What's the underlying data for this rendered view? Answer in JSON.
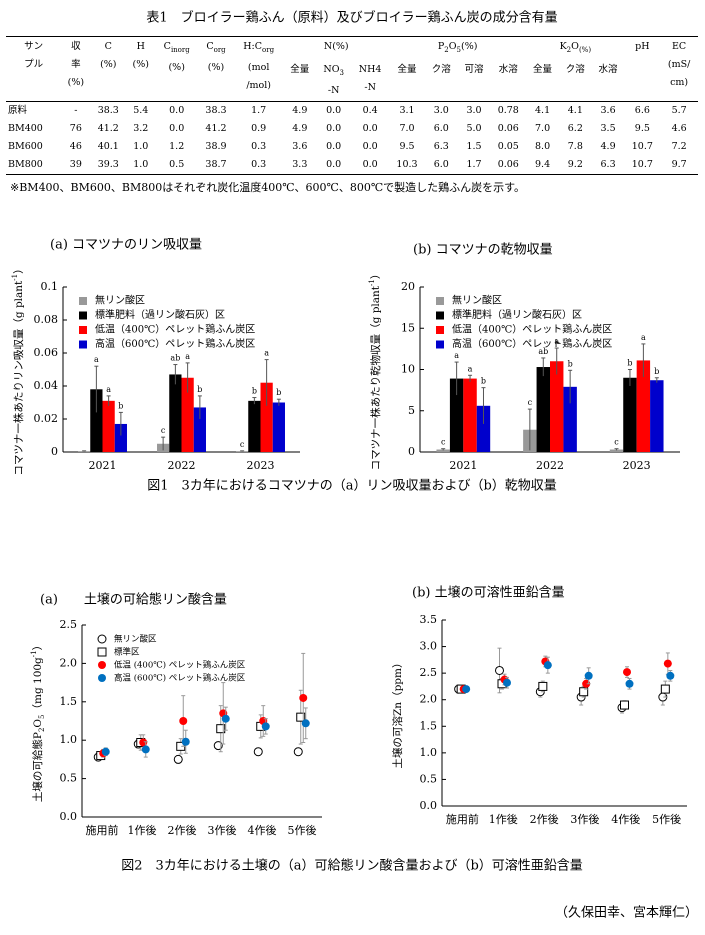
{
  "table": {
    "title": "表1　ブロイラー鶏ふん（原料）及びブロイラー鶏ふん炭の成分含有量",
    "columns": [
      {
        "lines": [
          [
            "サン"
          ],
          [
            "プル"
          ]
        ]
      },
      {
        "lines": [
          [
            "収"
          ],
          [
            "率"
          ],
          [
            "(%)"
          ]
        ]
      },
      {
        "lines": [
          [
            "C"
          ],
          [
            "(%)"
          ]
        ]
      },
      {
        "lines": [
          [
            "H"
          ],
          [
            "(%)"
          ]
        ]
      },
      {
        "lines": [
          [
            "C",
            "inorg"
          ],
          [
            "(%)"
          ]
        ]
      },
      {
        "lines": [
          [
            "C",
            "org"
          ],
          [
            "(%)"
          ]
        ]
      },
      {
        "lines": [
          [
            "H:C",
            "org"
          ],
          [
            "(mol"
          ],
          [
            "/mol)"
          ]
        ]
      },
      {
        "group": [
          "N(%)"
        ],
        "columns": [
          {
            "lines": [
              [
                "全量"
              ]
            ]
          },
          {
            "lines": [
              [
                "NO",
                "3"
              ],
              [
                "-N"
              ]
            ]
          },
          {
            "lines": [
              [
                "NH4"
              ],
              [
                "-N"
              ]
            ]
          }
        ]
      },
      {
        "group": [
          "P",
          "2",
          "O",
          "5",
          "(%)"
        ],
        "columns": [
          {
            "lines": [
              [
                "全量"
              ]
            ]
          },
          {
            "lines": [
              [
                "ク溶"
              ]
            ]
          },
          {
            "lines": [
              [
                "可溶"
              ]
            ]
          },
          {
            "lines": [
              [
                "水溶"
              ]
            ]
          }
        ]
      },
      {
        "group": [
          "K",
          "2",
          "O",
          "(%)"
        ],
        "columns": [
          {
            "lines": [
              [
                "全量"
              ]
            ]
          },
          {
            "lines": [
              [
                "ク溶"
              ]
            ]
          },
          {
            "lines": [
              [
                "水溶"
              ]
            ]
          }
        ]
      },
      {
        "lines": [
          [
            "pH"
          ]
        ]
      },
      {
        "lines": [
          [
            "EC"
          ],
          [
            "(mS/"
          ],
          [
            "cm)"
          ]
        ]
      }
    ],
    "rows": [
      [
        "原料",
        "-",
        "38.3",
        "5.4",
        "0.0",
        "38.3",
        "1.7",
        "4.9",
        "0.0",
        "0.4",
        "3.1",
        "3.0",
        "3.0",
        "0.78",
        "4.1",
        "4.1",
        "3.6",
        "6.6",
        "5.7"
      ],
      [
        "BM400",
        "76",
        "41.2",
        "3.2",
        "0.0",
        "41.2",
        "0.9",
        "4.9",
        "0.0",
        "0.0",
        "7.0",
        "6.0",
        "5.0",
        "0.06",
        "7.0",
        "6.2",
        "3.5",
        "9.5",
        "4.6"
      ],
      [
        "BM600",
        "46",
        "40.1",
        "1.0",
        "1.2",
        "38.9",
        "0.3",
        "3.6",
        "0.0",
        "0.0",
        "9.5",
        "6.3",
        "1.5",
        "0.05",
        "8.0",
        "7.8",
        "4.9",
        "10.7",
        "7.2"
      ],
      [
        "BM800",
        "39",
        "39.3",
        "1.0",
        "0.5",
        "38.7",
        "0.3",
        "3.3",
        "0.0",
        "0.0",
        "10.3",
        "6.0",
        "1.7",
        "0.06",
        "9.4",
        "9.2",
        "6.3",
        "10.7",
        "9.7"
      ]
    ],
    "note": "※BM400、BM600、BM800はそれぞれ炭化温度400℃、600℃、800℃で製造した鶏ふん炭を示す。"
  },
  "chart_data": [
    {
      "type": "bar",
      "title": "(a) コマツナのリン吸収量",
      "ylabel": [
        "コマツナ一株あたりリン吸収量（g plant",
        "-1",
        "）"
      ],
      "categories": [
        "2021",
        "2022",
        "2023"
      ],
      "ylim": [
        0,
        0.1
      ],
      "yticks": [
        0,
        0.02,
        0.04,
        0.06,
        0.08,
        0.1
      ],
      "legend": "upper left",
      "series": [
        {
          "name": "無リン酸区",
          "color": "#999999",
          "values": [
            0.0005,
            0.005,
            0.0005
          ],
          "errors": [
            0.0002,
            0.004,
            0.0002
          ],
          "labels": [
            null,
            "c",
            "c"
          ]
        },
        {
          "name": "標準肥料（過リン酸石灰）区",
          "color": "#000000",
          "values": [
            0.038,
            0.047,
            0.031
          ],
          "errors": [
            0.014,
            0.006,
            0.002
          ],
          "labels": [
            "a",
            "ab",
            "b"
          ]
        },
        {
          "name": "低温（400℃）ペレット鶏ふん炭区",
          "color": "#ff0000",
          "values": [
            0.031,
            0.045,
            0.042
          ],
          "errors": [
            0.003,
            0.009,
            0.014
          ],
          "labels": [
            "a",
            "a",
            "a"
          ]
        },
        {
          "name": "高温（600℃）ペレット鶏ふん炭区",
          "color": "#0000cc",
          "values": [
            0.017,
            0.027,
            0.03
          ],
          "errors": [
            0.007,
            0.007,
            0.002
          ],
          "labels": [
            "b",
            "b",
            "b"
          ]
        }
      ]
    },
    {
      "type": "bar",
      "title": "(b) コマツナの乾物収量",
      "ylabel": [
        "コマツナ一株あたり乾物収量（g plant",
        "-1",
        "）"
      ],
      "categories": [
        "2021",
        "2022",
        "2023"
      ],
      "ylim": [
        0,
        20
      ],
      "yticks": [
        0,
        5,
        10,
        15,
        20
      ],
      "legend": "upper left",
      "series": [
        {
          "name": "無リン酸区",
          "color": "#999999",
          "values": [
            0.3,
            2.7,
            0.3
          ],
          "errors": [
            0.1,
            2.5,
            0.1
          ],
          "labels": [
            "c",
            "c",
            "c"
          ]
        },
        {
          "name": "標準肥料（過リン酸石灰）区",
          "color": "#000000",
          "values": [
            8.9,
            10.3,
            9.0
          ],
          "errors": [
            2.0,
            1.1,
            1.0
          ],
          "labels": [
            "a",
            "ab",
            "b"
          ]
        },
        {
          "name": "低温（400℃）ペレット鶏ふん炭区",
          "color": "#ff0000",
          "values": [
            8.9,
            11.0,
            11.1
          ],
          "errors": [
            0.4,
            1.6,
            2.0
          ],
          "labels": [
            "a",
            "a",
            "a"
          ]
        },
        {
          "name": "高温（600℃）ペレット鶏ふん炭区",
          "color": "#0000cc",
          "values": [
            5.6,
            7.9,
            8.7
          ],
          "errors": [
            2.2,
            2.0,
            0.3
          ],
          "labels": [
            "b",
            "b",
            "b"
          ]
        }
      ]
    },
    {
      "type": "scatter",
      "title": "(a)　　土壌の可給態リン酸含量",
      "ylabel": [
        "土壌の可給態P",
        "2",
        "O",
        "5",
        "（mg 100g",
        "-1",
        "）"
      ],
      "categories": [
        "施用前",
        "1作後",
        "2作後",
        "3作後",
        "4作後",
        "5作後"
      ],
      "ylim": [
        0,
        2.5
      ],
      "yticks": [
        {
          "value": 0,
          "label": "0.0"
        },
        0.5,
        {
          "value": 1,
          "label": "1.0"
        },
        1.5,
        {
          "value": 2,
          "label": "2.0"
        },
        2.5
      ],
      "legend": "upper left",
      "series": [
        {
          "name": "無リン酸区",
          "color": "#000000",
          "marker": "open-circle",
          "values": [
            0.78,
            0.95,
            0.75,
            0.93,
            0.85,
            0.85
          ],
          "errors": [
            0.05,
            0.05,
            0.05,
            0.05,
            0.05,
            0.05
          ]
        },
        {
          "name": "標準区",
          "color": "#000000",
          "marker": "open-square",
          "values": [
            0.8,
            0.97,
            0.92,
            1.15,
            1.18,
            1.3
          ],
          "errors": [
            0.05,
            0.1,
            0.1,
            0.3,
            0.15,
            0.35
          ]
        },
        {
          "name": "低温 (400℃) ペレット鶏ふん炭区",
          "color": "#ff0000",
          "marker": "circle",
          "values": [
            0.83,
            0.97,
            1.25,
            1.35,
            1.25,
            1.55
          ],
          "errors": [
            0.05,
            0.1,
            0.33,
            0.4,
            0.2,
            0.58
          ]
        },
        {
          "name": "高温 (600℃) ペレット鶏ふん炭区",
          "color": "#0070c0",
          "marker": "circle",
          "values": [
            0.85,
            0.88,
            0.98,
            1.28,
            1.18,
            1.22
          ],
          "errors": [
            0.05,
            0.1,
            0.15,
            0.15,
            0.1,
            0.2
          ]
        }
      ]
    },
    {
      "type": "scatter",
      "title": "(b) 土壌の可溶性亜鉛含量",
      "ylabel": [
        "土壌の可溶Zn（ppm）"
      ],
      "categories": [
        "施用前",
        "1作後",
        "2作後",
        "3作後",
        "4作後",
        "5作後"
      ],
      "ylim": [
        0,
        3.5
      ],
      "yticks": [
        {
          "value": 0,
          "label": "0.0"
        },
        0.5,
        {
          "value": 1,
          "label": "1.0"
        },
        1.5,
        {
          "value": 2,
          "label": "2.0"
        },
        2.5,
        {
          "value": 3,
          "label": "3.0"
        },
        3.5
      ],
      "series": [
        {
          "name": "無リン酸区",
          "color": "#000000",
          "marker": "open-circle",
          "values": [
            2.2,
            2.55,
            2.15,
            2.05,
            1.85,
            2.05
          ],
          "errors": [
            0.05,
            0.42,
            0.1,
            0.15,
            0.1,
            0.15
          ]
        },
        {
          "name": "標準区",
          "color": "#000000",
          "marker": "open-square",
          "values": [
            2.2,
            2.3,
            2.25,
            2.15,
            1.9,
            2.2
          ],
          "errors": [
            0.05,
            0.1,
            0.1,
            0.1,
            0.08,
            0.15
          ]
        },
        {
          "name": "低温 (400℃) ペレット鶏ふん炭区",
          "color": "#ff0000",
          "marker": "circle",
          "values": [
            2.2,
            2.38,
            2.72,
            2.3,
            2.52,
            2.68
          ],
          "errors": [
            0.05,
            0.1,
            0.1,
            0.1,
            0.1,
            0.2
          ]
        },
        {
          "name": "高温 (600℃) ペレット鶏ふん炭区",
          "color": "#0070c0",
          "marker": "circle",
          "values": [
            2.2,
            2.32,
            2.65,
            2.45,
            2.3,
            2.45
          ],
          "errors": [
            0.05,
            0.1,
            0.15,
            0.15,
            0.1,
            0.1
          ]
        }
      ]
    }
  ],
  "figure1_caption": "図1　3カ年におけるコマツナの（a）リン吸収量および（b）乾物収量",
  "figure2_caption": "図2　3カ年における土壌の（a）可給態リン酸含量および（b）可溶性亜鉛含量",
  "author": "（久保田幸、宮本輝仁）"
}
